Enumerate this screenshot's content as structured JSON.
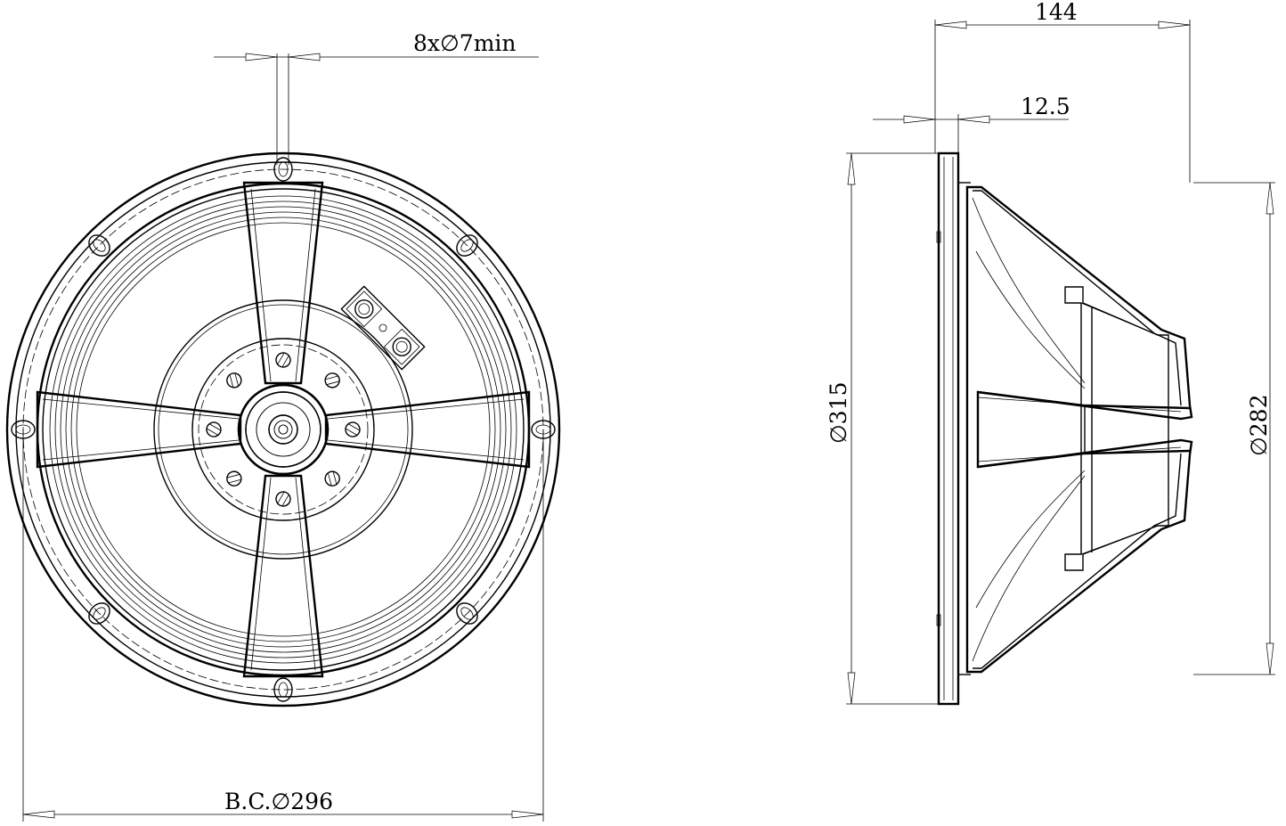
{
  "dimensions": {
    "bolt_holes": "8x∅7min",
    "bolt_circle": "B.C.∅296",
    "depth": "144",
    "flange": "12.5",
    "outer_diameter": "∅315",
    "baffle_cutout": "∅282"
  }
}
